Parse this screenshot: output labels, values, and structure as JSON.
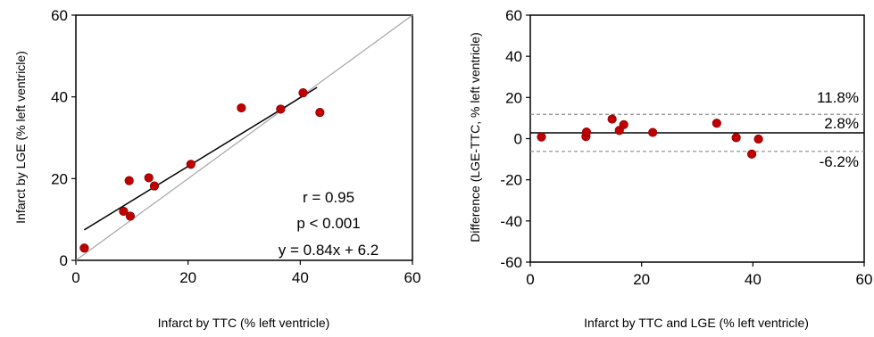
{
  "chart_data": [
    {
      "type": "scatter",
      "title": "",
      "xlabel": "Infarct by TTC (% left ventricle)",
      "ylabel": "Infarct by LGE  (% left ventricle)",
      "xlim": [
        0,
        60
      ],
      "ylim": [
        0,
        60
      ],
      "xticks": [
        0,
        20,
        40,
        60
      ],
      "yticks": [
        0,
        20,
        40,
        60
      ],
      "grid": false,
      "point_color": "#c00000",
      "points": [
        {
          "x": 1.5,
          "y": 3.0
        },
        {
          "x": 8.5,
          "y": 12.0
        },
        {
          "x": 9.5,
          "y": 19.5
        },
        {
          "x": 9.7,
          "y": 10.8
        },
        {
          "x": 13.0,
          "y": 20.2
        },
        {
          "x": 14.0,
          "y": 18.2
        },
        {
          "x": 20.5,
          "y": 23.5
        },
        {
          "x": 29.5,
          "y": 37.3
        },
        {
          "x": 36.5,
          "y": 37.0
        },
        {
          "x": 40.5,
          "y": 41.0
        },
        {
          "x": 43.5,
          "y": 36.2
        }
      ],
      "regression_line": {
        "slope": 0.84,
        "intercept": 6.2,
        "x_range": [
          1.5,
          43.0
        ]
      },
      "identity_line": true,
      "annotations": [
        "r = 0.95",
        "p < 0.001",
        "y = 0.84x + 6.2"
      ]
    },
    {
      "type": "scatter",
      "title": "",
      "xlabel": "Infarct by TTC and LGE (% left ventricle)",
      "ylabel": "Difference (LGE-TTC, % left ventricle)",
      "xlim": [
        0,
        60
      ],
      "ylim": [
        -60,
        60
      ],
      "xticks": [
        0,
        20,
        40,
        60
      ],
      "yticks": [
        -60,
        -40,
        -20,
        0,
        20,
        40,
        60
      ],
      "grid": false,
      "point_color": "#c00000",
      "points": [
        {
          "x": 2.0,
          "y": 0.8
        },
        {
          "x": 10.0,
          "y": 1.0
        },
        {
          "x": 10.1,
          "y": 3.2
        },
        {
          "x": 14.7,
          "y": 9.5
        },
        {
          "x": 16.0,
          "y": 4.0
        },
        {
          "x": 16.8,
          "y": 6.8
        },
        {
          "x": 22.0,
          "y": 3.0
        },
        {
          "x": 33.5,
          "y": 7.5
        },
        {
          "x": 37.0,
          "y": 0.5
        },
        {
          "x": 39.8,
          "y": -7.5
        },
        {
          "x": 41.0,
          "y": -0.2
        }
      ],
      "mean_line": {
        "value": 2.8,
        "label": "2.8%"
      },
      "limit_lines": [
        {
          "value": 11.8,
          "label": "11.8%"
        },
        {
          "value": -6.2,
          "label": "-6.2%"
        }
      ]
    }
  ]
}
